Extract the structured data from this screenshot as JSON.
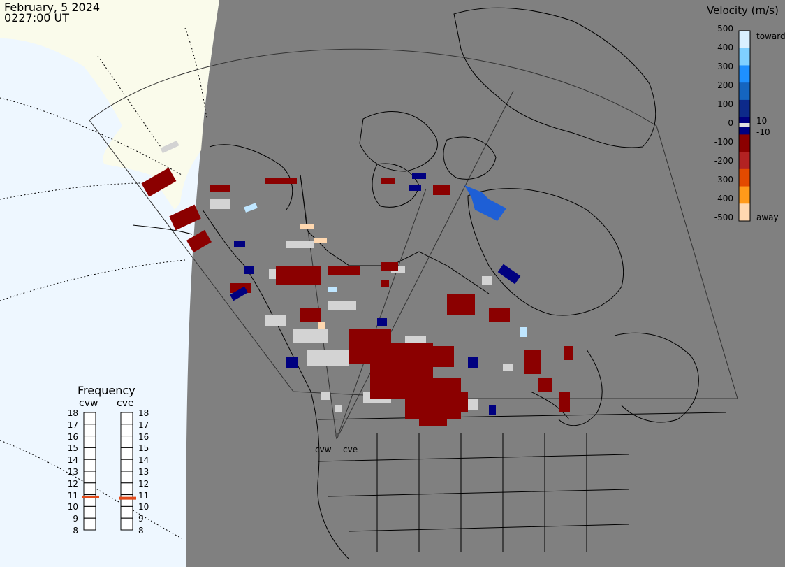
{
  "header": {
    "date": "February, 5 2024",
    "time": "0227:00 UT"
  },
  "legend": {
    "title": "Velocity (m/s)",
    "toward_label": "toward",
    "away_label": "away",
    "ticks": [
      "500",
      "400",
      "300",
      "200",
      "100",
      "0",
      "-100",
      "-200",
      "-300",
      "-400",
      "-500"
    ],
    "threshold_pos": "10",
    "threshold_neg": "-10",
    "colors": [
      "#d9f0ff",
      "#7fd0ff",
      "#1e90ff",
      "#1565c0",
      "#0d2a8a",
      "#000080",
      "#8b0000",
      "#b22222",
      "#e34a00",
      "#ff9a1a",
      "#ffd8b0"
    ]
  },
  "frequency": {
    "title": "Frequency",
    "radars": [
      "cvw",
      "cve"
    ],
    "scale": [
      "18",
      "17",
      "16",
      "15",
      "14",
      "13",
      "12",
      "11",
      "10",
      "9",
      "8"
    ],
    "cvw_mhz": 10.8,
    "cve_mhz": 10.7,
    "marker_color": "#e24a1a"
  },
  "sites": {
    "cvw_label": "cvw",
    "cve_label": "cve"
  },
  "colors": {
    "land": "#808080",
    "ocean_day": "#eef7ff",
    "land_day": "#fbfbe8",
    "ground_scatter": "#d3d3d3"
  }
}
